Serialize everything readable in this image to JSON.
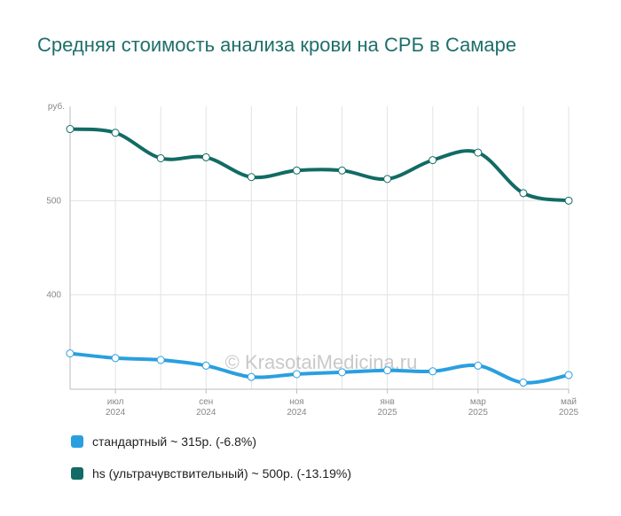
{
  "title": "Средняя стоимость анализа крови на СРБ в Самаре",
  "watermark": "© KrasotaiMedicina.ru",
  "chart_data": {
    "type": "line",
    "title": "Средняя стоимость анализа крови на СРБ в Самаре",
    "y_unit_label": "руб.",
    "ylim": [
      300,
      600
    ],
    "yticks": [
      400,
      500
    ],
    "x_count": 12,
    "x_ticks": [
      {
        "index": 1,
        "month": "июл",
        "year": "2024"
      },
      {
        "index": 3,
        "month": "сен",
        "year": "2024"
      },
      {
        "index": 5,
        "month": "ноя",
        "year": "2024"
      },
      {
        "index": 7,
        "month": "янв",
        "year": "2025"
      },
      {
        "index": 9,
        "month": "мар",
        "year": "2025"
      },
      {
        "index": 11,
        "month": "май",
        "year": "2025"
      }
    ],
    "grid": true,
    "legend_position": "bottom",
    "series": [
      {
        "name": "стандартный ~ 315р. (-6.8%)",
        "color": "#2a9fe0",
        "values": [
          338,
          333,
          331,
          325,
          313,
          316,
          318,
          320,
          319,
          325,
          307,
          315
        ]
      },
      {
        "name": "hs (ультрачувствительный) ~ 500р. (-13.19%)",
        "color": "#126b65",
        "values": [
          576,
          572,
          545,
          546,
          525,
          532,
          532,
          523,
          543,
          551,
          508,
          500
        ]
      }
    ]
  }
}
